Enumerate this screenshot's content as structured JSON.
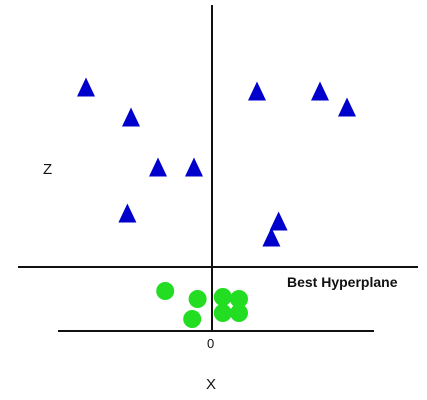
{
  "chart_data": {
    "type": "scatter",
    "xlabel": "X",
    "ylabel": "Z",
    "x_tick_labels": [
      "0"
    ],
    "annotations": [
      {
        "text": "Best Hyperplane"
      }
    ],
    "hyperplane_z": 0.0,
    "xlim": [
      -8.5,
      9.0
    ],
    "ylim": [
      -0.9,
      12.6
    ],
    "series": [
      {
        "marker": "triangle",
        "color": "#0000cc",
        "points": [
          {
            "x": -7.0,
            "z": 9.0
          },
          {
            "x": -4.5,
            "z": 7.5
          },
          {
            "x": -3.0,
            "z": 5.0
          },
          {
            "x": -1.0,
            "z": 5.0
          },
          {
            "x": -4.7,
            "z": 2.7
          },
          {
            "x": 2.5,
            "z": 8.8
          },
          {
            "x": 6.0,
            "z": 8.8
          },
          {
            "x": 7.5,
            "z": 8.0
          },
          {
            "x": 3.7,
            "z": 2.3
          },
          {
            "x": 3.3,
            "z": 1.5
          }
        ]
      },
      {
        "marker": "circle",
        "color": "#22dd22",
        "points": [
          {
            "x": -2.6,
            "z": -1.2
          },
          {
            "x": -0.8,
            "z": -1.6
          },
          {
            "x": -1.1,
            "z": -2.6
          },
          {
            "x": 0.6,
            "z": -1.5
          },
          {
            "x": 1.5,
            "z": -1.6
          },
          {
            "x": 0.6,
            "z": -2.3
          },
          {
            "x": 1.5,
            "z": -2.3
          }
        ]
      }
    ]
  }
}
